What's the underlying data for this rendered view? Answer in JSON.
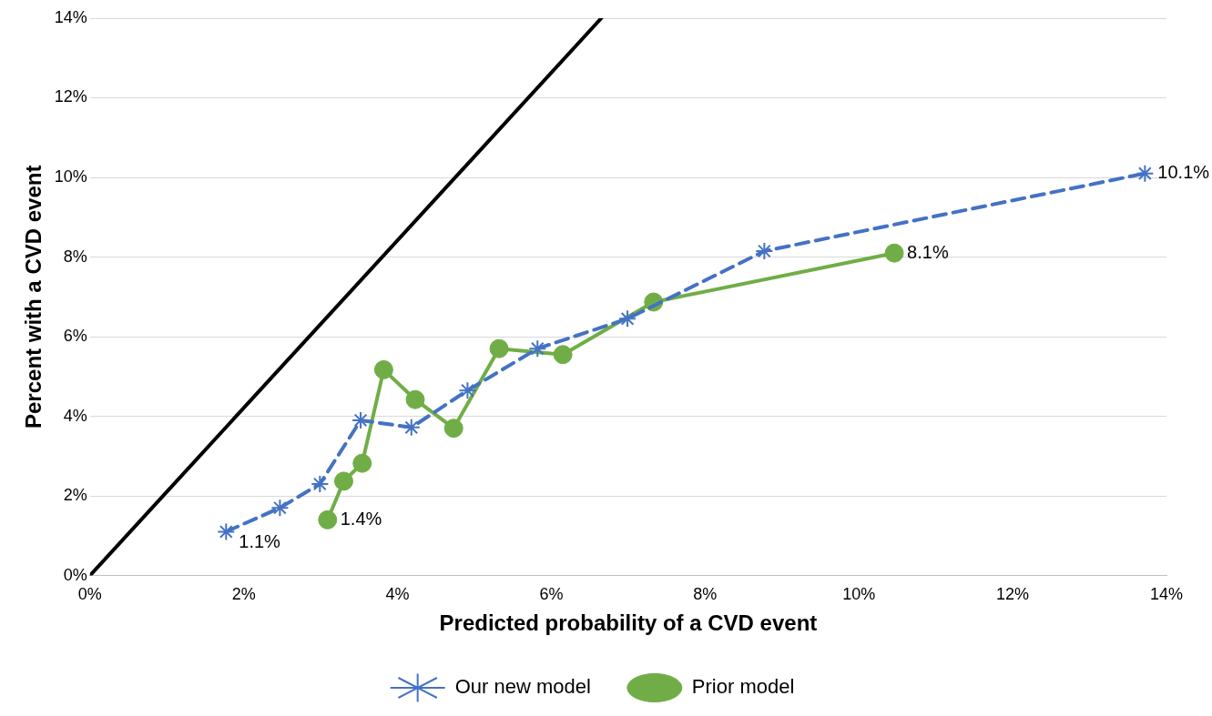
{
  "chart_data": {
    "type": "line",
    "xlabel": "Predicted probability of a CVD event",
    "ylabel": "Percent with a CVD event",
    "xlim": [
      0,
      14
    ],
    "xticks": [
      {
        "value": 0,
        "label": "0%"
      },
      {
        "value": 2,
        "label": "2%"
      },
      {
        "value": 4,
        "label": "4%"
      },
      {
        "value": 6,
        "label": "6%"
      },
      {
        "value": 8,
        "label": "8%"
      },
      {
        "value": 10,
        "label": "10%"
      },
      {
        "value": 12,
        "label": "12%"
      },
      {
        "value": 14,
        "label": "14%"
      }
    ],
    "ylim": [
      0,
      14
    ],
    "yticks": [
      {
        "value": 0,
        "label": "0%"
      },
      {
        "value": 2,
        "label": "2%"
      },
      {
        "value": 4,
        "label": "4%"
      },
      {
        "value": 6,
        "label": "6%"
      },
      {
        "value": 8,
        "label": "8%"
      },
      {
        "value": 10,
        "label": "10%"
      },
      {
        "value": 12,
        "label": "12%"
      },
      {
        "value": 14,
        "label": "14%"
      }
    ],
    "grid": "y",
    "legend": "bottom",
    "series": [
      {
        "name": "Our new model",
        "color": "#4472c4",
        "marker": "cross",
        "line_style": "dashed",
        "x": [
          1.77,
          2.47,
          2.99,
          3.52,
          4.18,
          4.91,
          5.82,
          6.99,
          8.77,
          13.72
        ],
        "values": [
          1.1,
          1.7,
          2.3,
          3.9,
          3.72,
          4.65,
          5.7,
          6.45,
          8.15,
          10.1
        ],
        "value_labels": [
          "1.1%",
          null,
          null,
          null,
          null,
          null,
          null,
          null,
          null,
          "10.1%"
        ]
      },
      {
        "name": "Prior model",
        "color": "#70ad47",
        "marker": "circle",
        "line_style": "solid",
        "x": [
          3.09,
          3.3,
          3.54,
          3.82,
          4.23,
          4.73,
          5.32,
          6.15,
          7.33,
          10.46
        ],
        "values": [
          1.4,
          2.37,
          2.82,
          5.17,
          4.42,
          3.7,
          5.7,
          5.55,
          6.87,
          8.1
        ],
        "value_labels": [
          "1.4%",
          null,
          null,
          null,
          null,
          null,
          null,
          null,
          null,
          "8.1%"
        ]
      },
      {
        "color": "#000000",
        "marker": "none",
        "line_style": "solid",
        "x": [
          0,
          6.65
        ],
        "values": [
          0,
          14
        ]
      }
    ]
  }
}
